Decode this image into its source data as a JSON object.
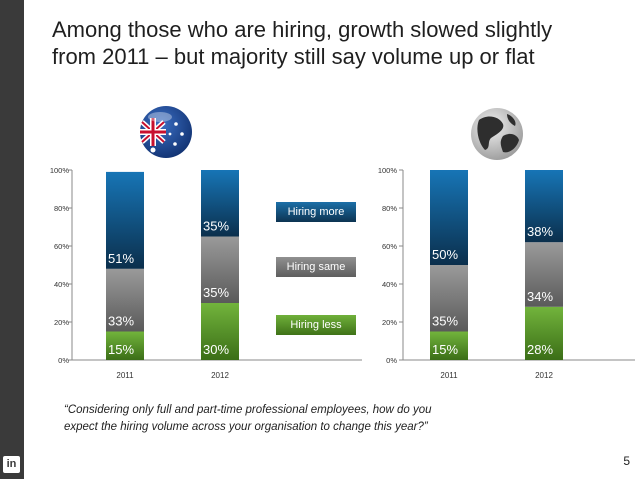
{
  "title": {
    "line1": "Among those who are hiring, growth slowed slightly",
    "line2": "from 2011 – but majority still say volume up or flat"
  },
  "legend": {
    "more": "Hiring more",
    "same": "Hiring same",
    "less": "Hiring less"
  },
  "quote": {
    "line1": "“Considering only full and part-time professional employees, how do you",
    "line2": "expect the hiring volume across your organisation to change this year?”"
  },
  "page_number": "5",
  "brand_text": "in",
  "icons": [
    "australia-flag-icon",
    "globe-icon",
    "linkedin-logo-icon"
  ],
  "colors": {
    "hiring_more": "#0d3d63",
    "hiring_same": "#707070",
    "hiring_less": "#4c8a22"
  },
  "chart_data": [
    {
      "type": "bar",
      "stacked": true,
      "region_icon": "australia-flag-icon",
      "categories": [
        "2011",
        "2012"
      ],
      "series": [
        {
          "name": "Hiring less",
          "values": [
            15,
            30
          ],
          "labels": [
            "15%",
            "30%"
          ]
        },
        {
          "name": "Hiring same",
          "values": [
            33,
            35
          ],
          "labels": [
            "33%",
            "35%"
          ]
        },
        {
          "name": "Hiring more",
          "values": [
            51,
            35
          ],
          "labels": [
            "51%",
            "35%"
          ]
        }
      ],
      "yticks": [
        "0%",
        "20%",
        "40%",
        "60%",
        "80%",
        "100%"
      ],
      "ylim": [
        0,
        100
      ]
    },
    {
      "type": "bar",
      "stacked": true,
      "region_icon": "globe-icon",
      "categories": [
        "2011",
        "2012"
      ],
      "series": [
        {
          "name": "Hiring less",
          "values": [
            15,
            28
          ],
          "labels": [
            "15%",
            "28%"
          ]
        },
        {
          "name": "Hiring same",
          "values": [
            35,
            34
          ],
          "labels": [
            "35%",
            "34%"
          ]
        },
        {
          "name": "Hiring more",
          "values": [
            50,
            38
          ],
          "labels": [
            "50%",
            "38%"
          ]
        }
      ],
      "yticks": [
        "0%",
        "20%",
        "40%",
        "60%",
        "80%",
        "100%"
      ],
      "ylim": [
        0,
        100
      ]
    }
  ]
}
